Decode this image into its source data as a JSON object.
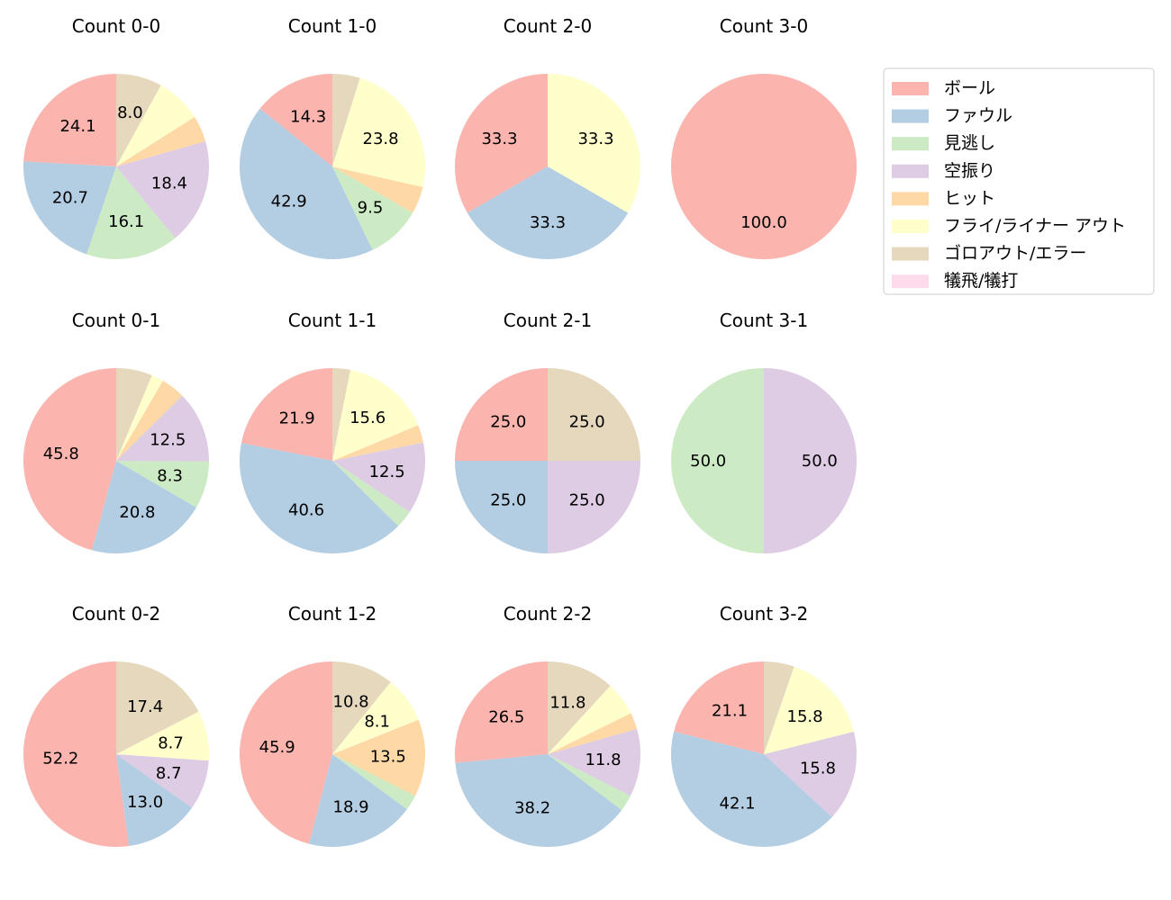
{
  "chart_data": {
    "type": "pie",
    "legend": {
      "location": "top-right",
      "entries": [
        {
          "name": "ボール",
          "color": "#fbb4ae"
        },
        {
          "name": "ファウル",
          "color": "#b3cde3"
        },
        {
          "name": "見逃し",
          "color": "#ccebc5"
        },
        {
          "name": "空振り",
          "color": "#decbe4"
        },
        {
          "name": "ヒット",
          "color": "#fed9a6"
        },
        {
          "name": "フライ/ライナー アウト",
          "color": "#ffffcc"
        },
        {
          "name": "ゴロアウト/エラー",
          "color": "#e5d8bd"
        },
        {
          "name": "犠飛/犠打",
          "color": "#fddaec"
        }
      ]
    },
    "categories": [
      "ボール",
      "ファウル",
      "見逃し",
      "空振り",
      "ヒット",
      "フライ/ライナー アウト",
      "ゴロアウト/エラー",
      "犠飛/犠打"
    ],
    "pies": [
      {
        "title": "Count 0-0",
        "values": [
          24.1,
          20.7,
          16.1,
          18.4,
          4.6,
          8.0,
          8.0,
          0
        ],
        "labels": [
          "24.1",
          "20.7",
          "16.1",
          "18.4",
          "",
          "",
          "8.0",
          ""
        ]
      },
      {
        "title": "Count 1-0",
        "values": [
          14.3,
          42.9,
          9.5,
          0,
          4.8,
          23.8,
          4.8,
          0
        ],
        "labels": [
          "14.3",
          "42.9",
          "9.5",
          "",
          "",
          "23.8",
          "",
          ""
        ]
      },
      {
        "title": "Count 2-0",
        "values": [
          33.3,
          33.3,
          0,
          0,
          0,
          33.3,
          0,
          0
        ],
        "labels": [
          "33.3",
          "33.3",
          "",
          "",
          "",
          "33.3",
          "",
          ""
        ]
      },
      {
        "title": "Count 3-0",
        "values": [
          100.0,
          0,
          0,
          0,
          0,
          0,
          0,
          0
        ],
        "labels": [
          "100.0",
          "",
          "",
          "",
          "",
          "",
          "",
          ""
        ]
      },
      {
        "title": "Count 0-1",
        "values": [
          45.8,
          20.8,
          8.3,
          12.5,
          4.2,
          2.1,
          6.3,
          0
        ],
        "labels": [
          "45.8",
          "20.8",
          "8.3",
          "12.5",
          "",
          "",
          "",
          ""
        ]
      },
      {
        "title": "Count 1-1",
        "values": [
          21.9,
          40.6,
          3.1,
          12.5,
          3.1,
          15.6,
          3.1,
          0
        ],
        "labels": [
          "21.9",
          "40.6",
          "",
          "12.5",
          "",
          "15.6",
          "",
          ""
        ]
      },
      {
        "title": "Count 2-1",
        "values": [
          25.0,
          25.0,
          0,
          25.0,
          0,
          0,
          25.0,
          0
        ],
        "labels": [
          "25.0",
          "25.0",
          "",
          "25.0",
          "",
          "",
          "25.0",
          ""
        ]
      },
      {
        "title": "Count 3-1",
        "values": [
          0,
          0,
          50.0,
          50.0,
          0,
          0,
          0,
          0
        ],
        "labels": [
          "",
          "",
          "50.0",
          "50.0",
          "",
          "",
          "",
          ""
        ]
      },
      {
        "title": "Count 0-2",
        "values": [
          52.2,
          13.0,
          0,
          8.7,
          0,
          8.7,
          17.4,
          0
        ],
        "labels": [
          "52.2",
          "13.0",
          "",
          "8.7",
          "",
          "8.7",
          "17.4",
          ""
        ]
      },
      {
        "title": "Count 1-2",
        "values": [
          45.9,
          18.9,
          2.7,
          0,
          13.5,
          8.1,
          10.8,
          0
        ],
        "labels": [
          "45.9",
          "18.9",
          "",
          "",
          "13.5",
          "8.1",
          "10.8",
          ""
        ]
      },
      {
        "title": "Count 2-2",
        "values": [
          26.5,
          38.2,
          2.9,
          11.8,
          2.9,
          5.9,
          11.8,
          0
        ],
        "labels": [
          "26.5",
          "38.2",
          "",
          "11.8",
          "",
          "",
          "11.8",
          ""
        ]
      },
      {
        "title": "Count 3-2",
        "values": [
          21.1,
          42.1,
          0,
          15.8,
          0,
          15.8,
          5.3,
          0
        ],
        "labels": [
          "21.1",
          "42.1",
          "",
          "15.8",
          "",
          "15.8",
          "",
          ""
        ]
      }
    ]
  }
}
